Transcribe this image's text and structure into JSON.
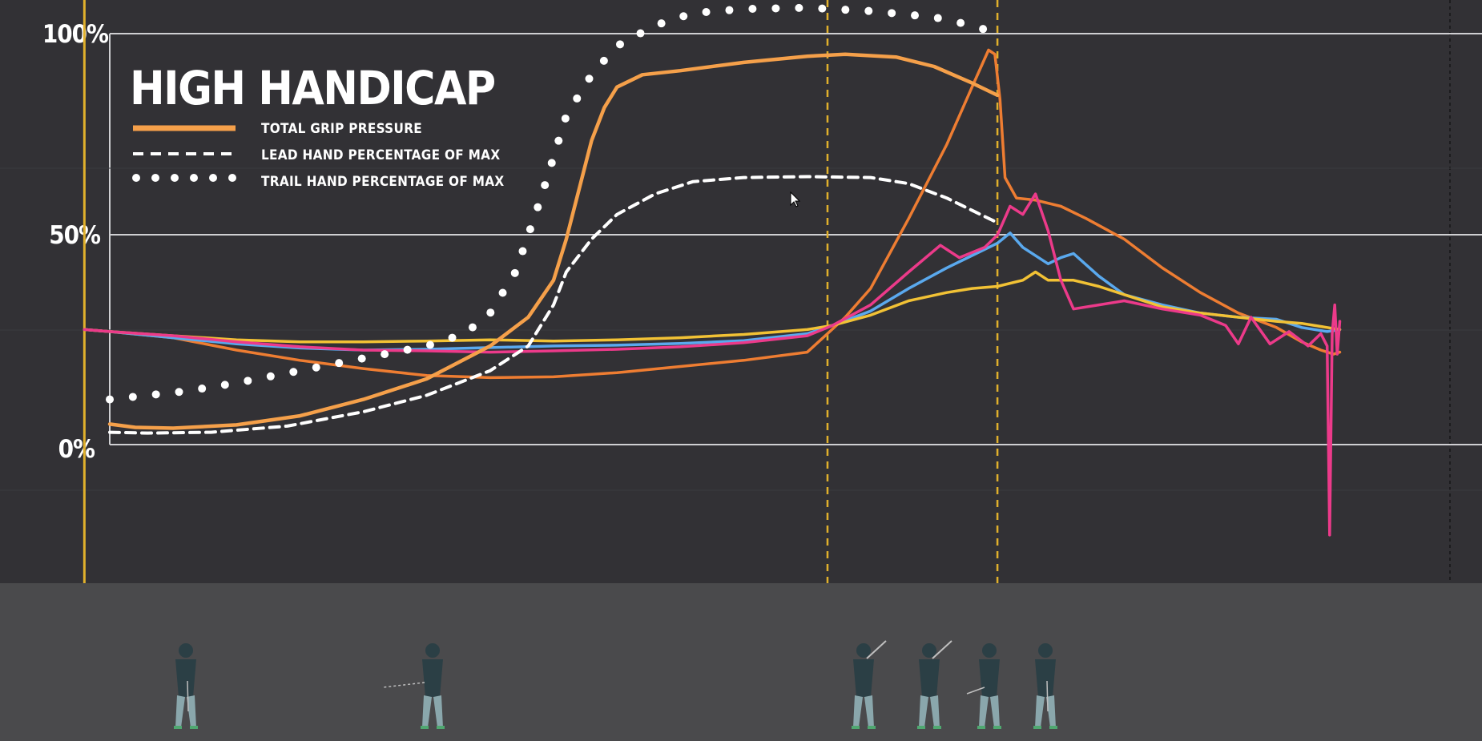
{
  "chart_data": {
    "type": "line",
    "title": "HIGH HANDICAP",
    "y_ticks": [
      "100%",
      "50%",
      "0%"
    ],
    "ylim": [
      0,
      100
    ],
    "xlim": [
      0,
      100
    ],
    "grid": true,
    "legend_position": "top-left",
    "legend": [
      {
        "label": "TOTAL GRIP PRESSURE",
        "style": "solid",
        "color": "#f5a04a"
      },
      {
        "label": "LEAD HAND PERCENTAGE OF MAX",
        "style": "dashed",
        "color": "#ffffff"
      },
      {
        "label": "TRAIL HAND PERCENTAGE OF MAX",
        "style": "dotted",
        "color": "#ffffff"
      }
    ],
    "markers_x": [
      -2,
      56.6,
      70
    ],
    "series": [
      {
        "key": "total",
        "style": "solid",
        "color": "#f5a04a",
        "x": [
          0,
          2,
          5,
          10,
          15,
          20,
          25,
          30,
          33,
          35,
          36,
          37,
          38,
          39,
          40,
          42,
          45,
          50,
          55,
          58,
          62,
          65,
          68,
          70
        ],
        "y": [
          5,
          4.2,
          4,
          4.8,
          7,
          11,
          16,
          24,
          31,
          40,
          50,
          62,
          74,
          82,
          87,
          90,
          91,
          93,
          94.5,
          95,
          94.3,
          92,
          88,
          85
        ]
      },
      {
        "key": "lead",
        "style": "dashed",
        "color": "#ffffff",
        "x": [
          0,
          3,
          8,
          14,
          20,
          25,
          30,
          33,
          35,
          36,
          38,
          40,
          43,
          46,
          50,
          55,
          60,
          63,
          66,
          68,
          70
        ],
        "y": [
          3,
          2.8,
          3,
          4.5,
          8,
          12,
          18,
          24,
          34,
          42,
          50,
          56,
          61,
          64,
          65,
          65.2,
          65,
          63.5,
          60,
          57,
          54
        ]
      },
      {
        "key": "trail",
        "style": "dotted",
        "color": "#ffffff",
        "x": [
          0,
          3,
          6,
          10,
          15,
          20,
          25,
          28,
          30,
          32,
          33,
          34,
          35,
          36,
          38,
          40,
          43,
          46,
          50,
          55,
          60,
          65,
          68,
          70
        ],
        "y": [
          11,
          12,
          13,
          15,
          18,
          21,
          24,
          27,
          32,
          42,
          51,
          60,
          70,
          80,
          90,
          97,
          102,
          105,
          106,
          106.3,
          105.5,
          104,
          102,
          100
        ]
      },
      {
        "key": "orange_sensor",
        "style": "solid",
        "color": "#ee7d32",
        "x": [
          -2,
          0,
          5,
          10,
          15,
          20,
          25,
          30,
          35,
          40,
          45,
          50,
          55,
          56.6,
          58,
          60,
          63,
          66,
          68,
          69.3,
          69.8,
          70.2,
          70.6,
          71.5,
          73,
          75,
          77,
          80,
          83,
          86,
          89,
          92,
          94,
          95.5,
          96.5,
          97
        ],
        "y": [
          28,
          27.5,
          26,
          23,
          20.5,
          18.5,
          16.8,
          16.3,
          16.5,
          17.5,
          19,
          20.5,
          22.5,
          27,
          31,
          38,
          55,
          73,
          87,
          96,
          95,
          84,
          65,
          60,
          59.5,
          58,
          55,
          50,
          43,
          37,
          32,
          28.5,
          25,
          23,
          22,
          22.5
        ]
      },
      {
        "key": "blue",
        "style": "solid",
        "color": "#5aa9ee",
        "x": [
          -2,
          0,
          5,
          10,
          15,
          20,
          25,
          30,
          35,
          40,
          45,
          50,
          55,
          57,
          60,
          63,
          66,
          68,
          70,
          71,
          72,
          74,
          75,
          76,
          78,
          80,
          83,
          86,
          89,
          92,
          94,
          96,
          97
        ],
        "y": [
          28,
          27.5,
          26,
          24.5,
          23.5,
          23,
          23.2,
          23.6,
          24,
          24.2,
          24.6,
          25.3,
          27,
          29,
          32.5,
          38,
          43,
          46,
          49,
          51.5,
          48,
          44,
          45.5,
          46.5,
          41,
          36.5,
          34,
          32,
          31,
          30.5,
          28.5,
          27.5,
          28
        ]
      },
      {
        "key": "pink",
        "style": "solid",
        "color": "#ec3a8a",
        "x": [
          -2,
          0,
          5,
          10,
          15,
          20,
          25,
          30,
          35,
          40,
          45,
          50,
          55,
          57,
          60,
          63,
          65.5,
          67,
          69,
          70,
          71,
          72,
          73,
          74,
          75,
          76,
          78,
          80,
          83,
          86,
          88,
          89,
          90,
          91.5,
          93,
          94.5,
          95.5,
          96,
          96.2,
          96.4,
          96.6,
          96.8,
          97
        ],
        "y": [
          28,
          27.5,
          26.5,
          25,
          23.8,
          23,
          22.8,
          22.5,
          22.8,
          23.2,
          23.8,
          24.8,
          26.5,
          29,
          34,
          42,
          48.5,
          45.5,
          48,
          51,
          58,
          56,
          61,
          52,
          40,
          33,
          34,
          35,
          33,
          31.5,
          29,
          24.5,
          31,
          24.5,
          27.5,
          24,
          27,
          24,
          -22,
          27,
          34,
          22,
          30
        ]
      },
      {
        "key": "yellow",
        "style": "solid",
        "color": "#f2c235",
        "x": [
          -2,
          0,
          5,
          10,
          15,
          20,
          25,
          30,
          35,
          40,
          45,
          50,
          55,
          57,
          60,
          63,
          66,
          68,
          70,
          72,
          73,
          74,
          76,
          78,
          80,
          83,
          86,
          89,
          92,
          94,
          96,
          97
        ],
        "y": [
          28,
          27.5,
          26.5,
          25.5,
          25,
          25,
          25.2,
          25.5,
          25.2,
          25.5,
          26,
          26.8,
          28,
          29,
          31.5,
          35,
          37,
          38,
          38.5,
          40,
          42,
          40,
          40,
          38.5,
          36.5,
          33.5,
          32,
          31,
          30,
          29.5,
          28.5,
          28
        ]
      }
    ]
  }
}
